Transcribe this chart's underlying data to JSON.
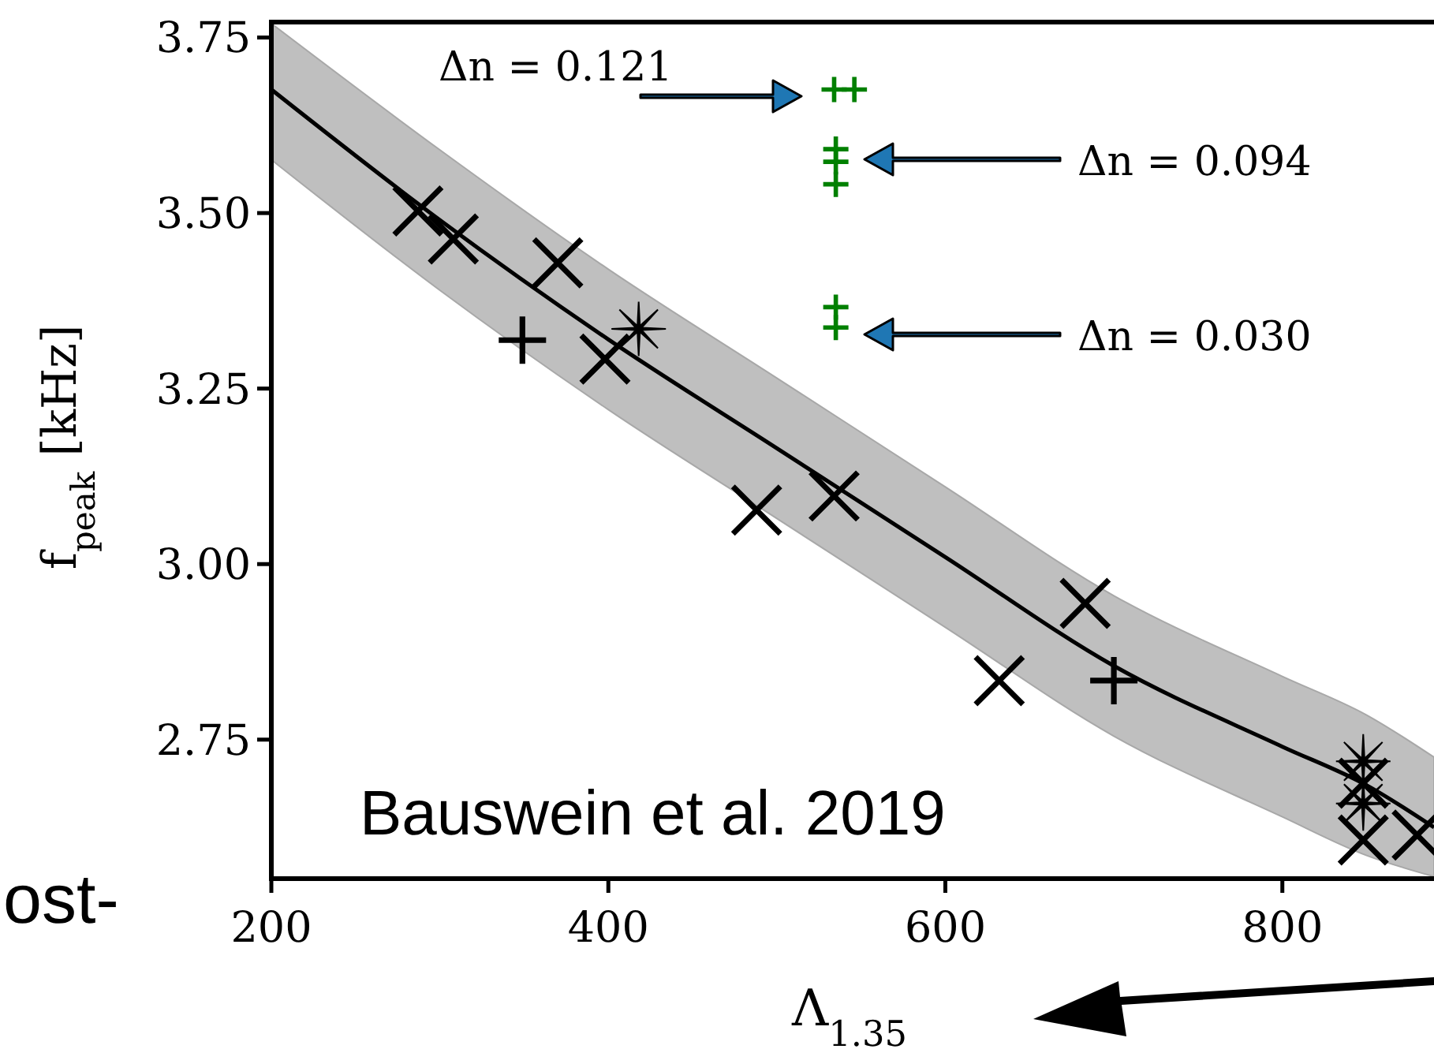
{
  "chart_data": {
    "type": "scatter",
    "xlabel": "Λ$_{1.35}$",
    "ylabel": "f$_{peak}$ [kHz]",
    "xlim": [
      200,
      890
    ],
    "ylim": [
      2.552,
      3.772
    ],
    "xticks": [
      200,
      400,
      600,
      800
    ],
    "yticks": [
      2.75,
      {
        "value": 3,
        "label": "3.00"
      },
      3.25,
      {
        "value": 3.5,
        "label": "3.50"
      },
      3.75
    ],
    "grid": false,
    "series": [
      {
        "type": "line",
        "color": "#000000",
        "marker": "none",
        "x": [
          200,
          300,
          400,
          500,
          600,
          700,
          800,
          850,
          890
        ],
        "values": [
          3.676,
          3.49,
          3.32,
          3.165,
          3.01,
          2.855,
          2.74,
          2.685,
          2.625
        ],
        "lower": [
          3.576,
          3.39,
          3.22,
          3.065,
          2.91,
          2.755,
          2.64,
          2.585,
          2.555
        ],
        "upper": [
          3.77,
          3.59,
          3.42,
          3.265,
          3.11,
          2.955,
          2.84,
          2.785,
          2.725
        ]
      },
      {
        "color": "#000000",
        "marker": "x",
        "x": [
          287,
          308,
          370,
          398,
          488,
          534,
          683,
          632,
          848,
          848,
          880
        ],
        "values": [
          3.503,
          3.463,
          3.429,
          3.292,
          3.077,
          3.097,
          2.944,
          2.834,
          2.688,
          2.607,
          2.614
        ]
      },
      {
        "color": "#000000",
        "marker": "cross",
        "x": [
          349,
          700
        ],
        "values": [
          3.319,
          2.834
        ]
      },
      {
        "color": "#000000",
        "marker": "star",
        "x": [
          418,
          848,
          848
        ],
        "values": [
          3.335,
          2.719,
          2.659
        ]
      },
      {
        "color": "#008000",
        "marker": "cross",
        "x": [
          534,
          546,
          535,
          535,
          535,
          535,
          535
        ],
        "values": [
          3.676,
          3.676,
          3.591,
          3.573,
          3.541,
          3.366,
          3.337
        ]
      }
    ],
    "annotations": [
      "Δn = 0.121",
      "Δn = 0.094",
      "Δn = 0.030",
      "Bauswein et al. 2019",
      "ost-"
    ]
  }
}
